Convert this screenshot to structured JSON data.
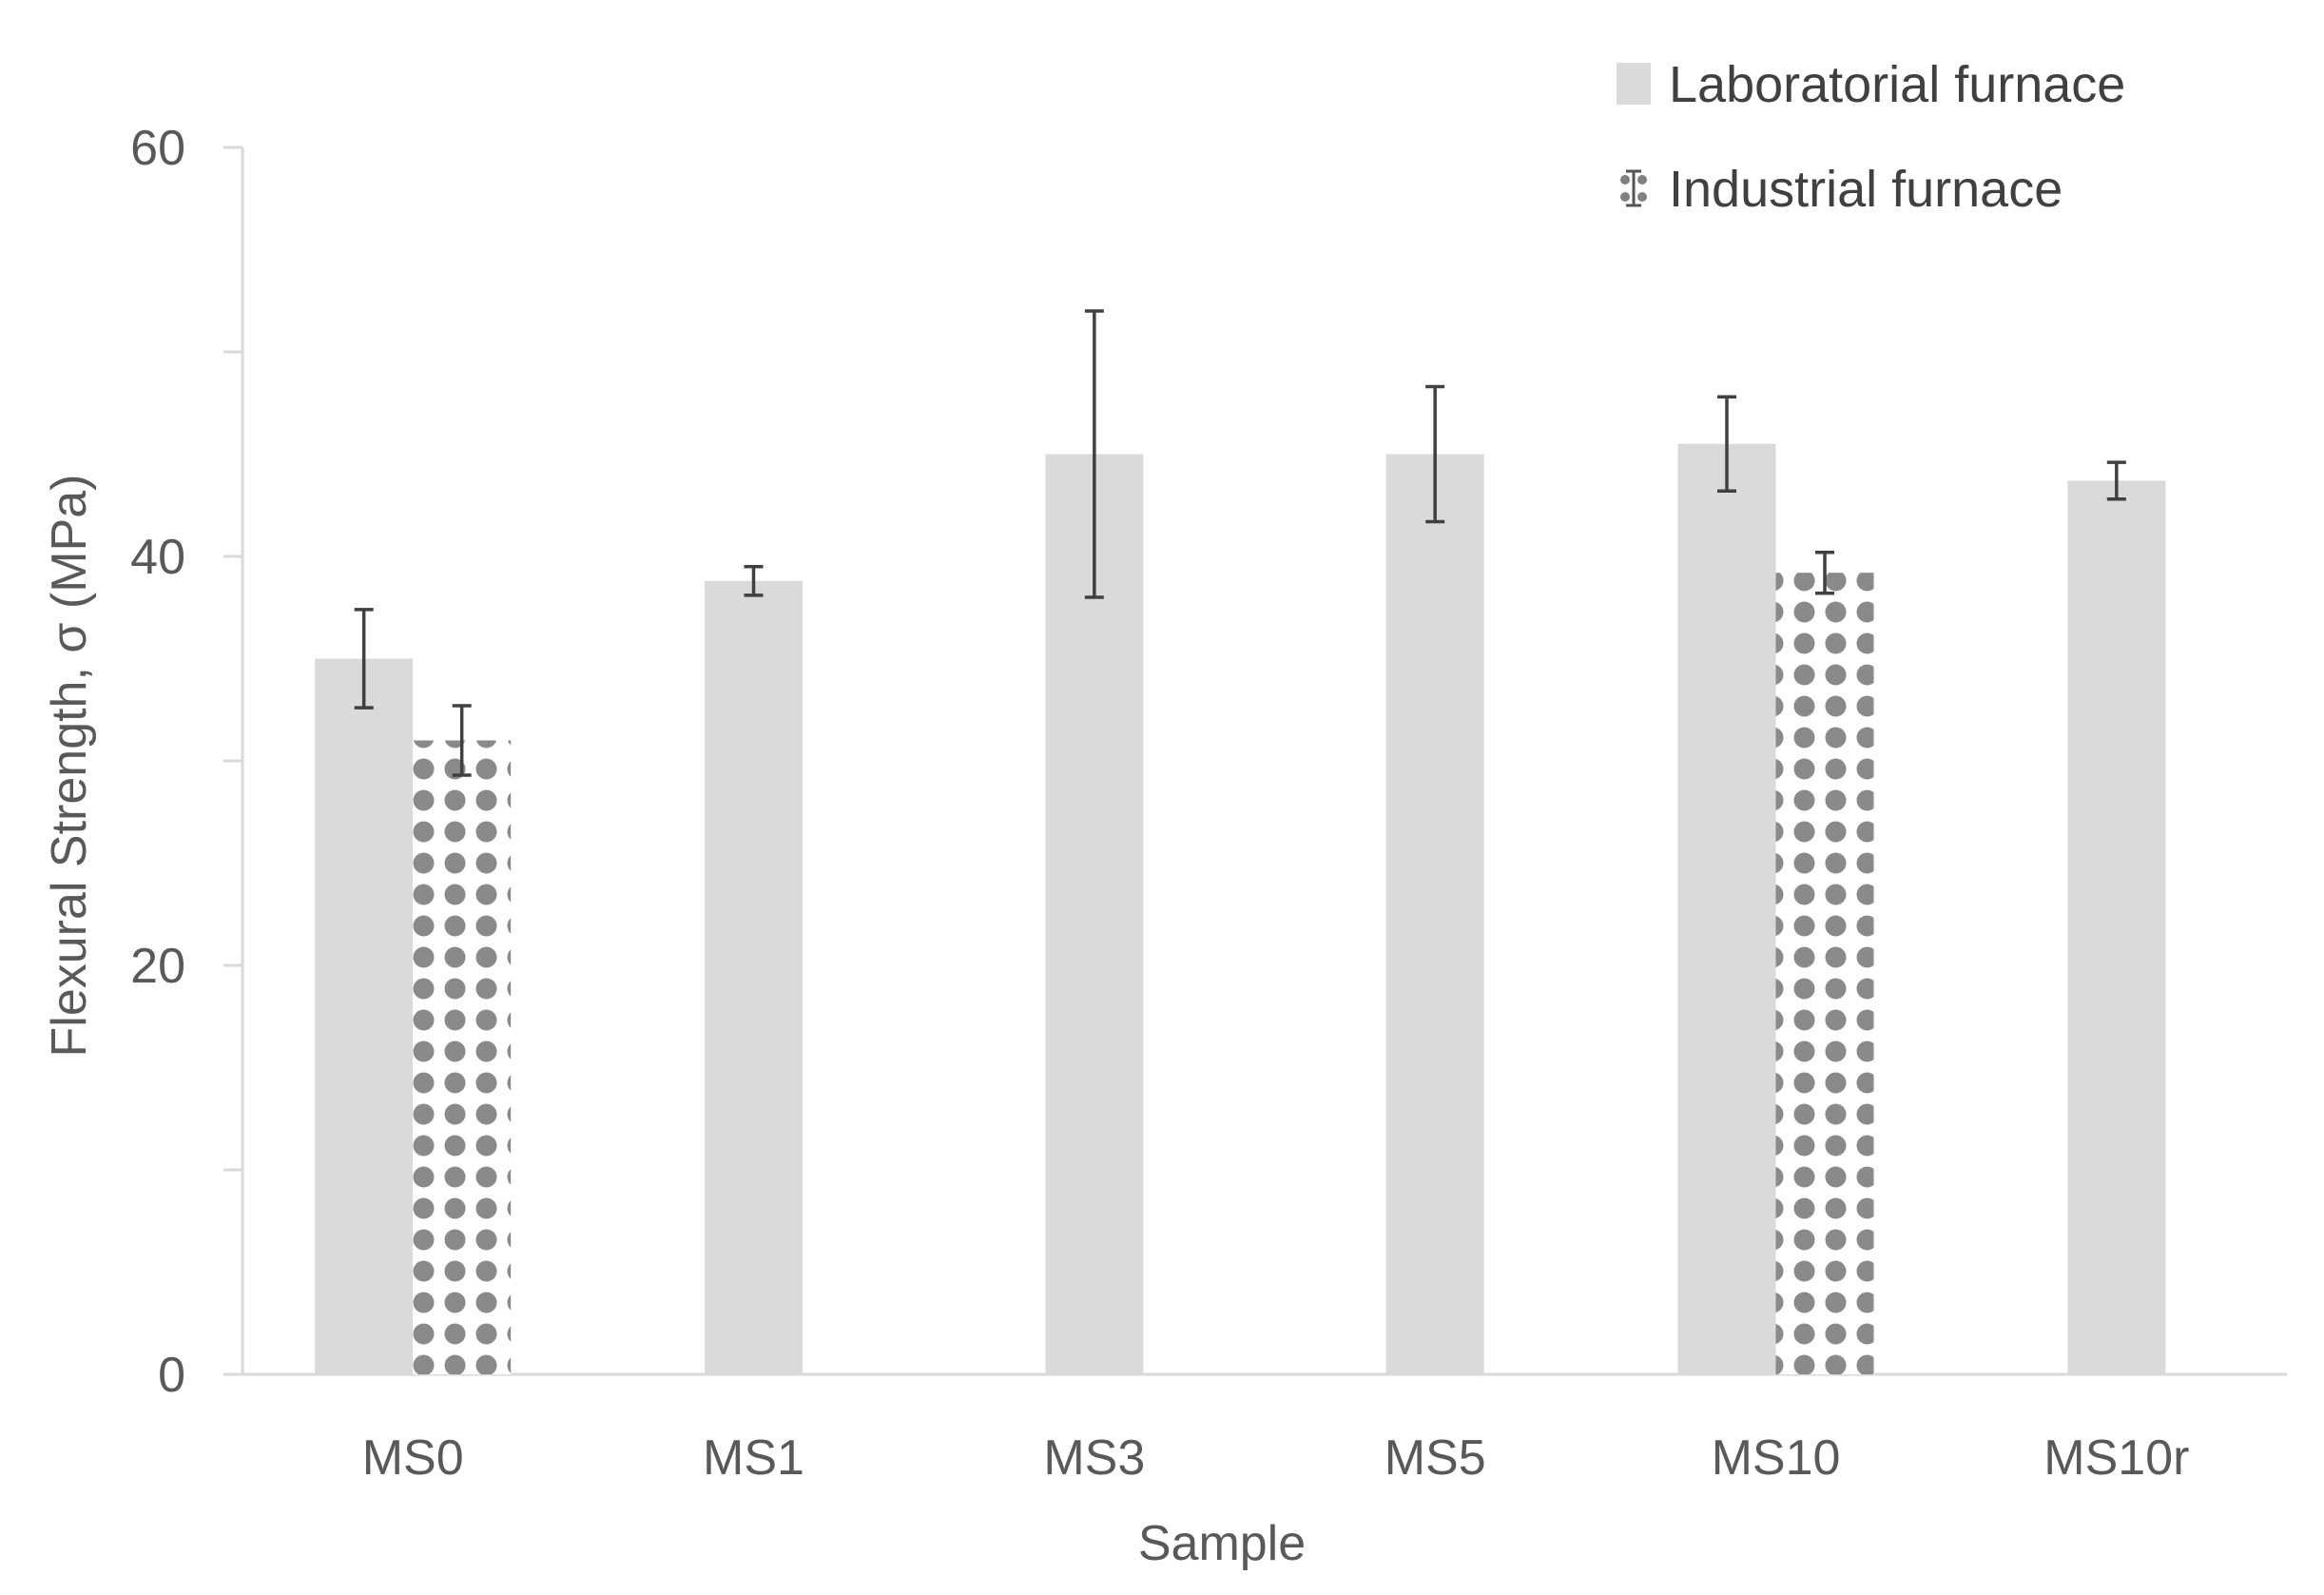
{
  "chart_data": {
    "type": "bar",
    "xlabel": "Sample",
    "ylabel": "Flexural Strength, σ (MPa)",
    "ylim": [
      0,
      60
    ],
    "y_major_ticks": [
      0,
      20,
      40,
      60
    ],
    "y_minor_ticks": [
      10,
      30,
      50
    ],
    "grid": false,
    "legend_position": "top-right",
    "categories": [
      "MS0",
      "MS1",
      "MS3",
      "MS5",
      "MS10",
      "MS10r"
    ],
    "series": [
      {
        "name": "Laboratorial furnace",
        "color": "#d9dadc",
        "pattern": "solid",
        "values": [
          35.0,
          38.8,
          45.0,
          45.0,
          45.5,
          43.7
        ],
        "error": [
          2.4,
          0.7,
          7.0,
          3.3,
          2.3,
          0.9
        ]
      },
      {
        "name": "Industrial furnace",
        "color": "#808080",
        "pattern": "dots",
        "values": [
          31.0,
          null,
          null,
          null,
          39.2,
          null
        ],
        "error": [
          1.7,
          null,
          null,
          null,
          1.0,
          null
        ]
      }
    ]
  }
}
